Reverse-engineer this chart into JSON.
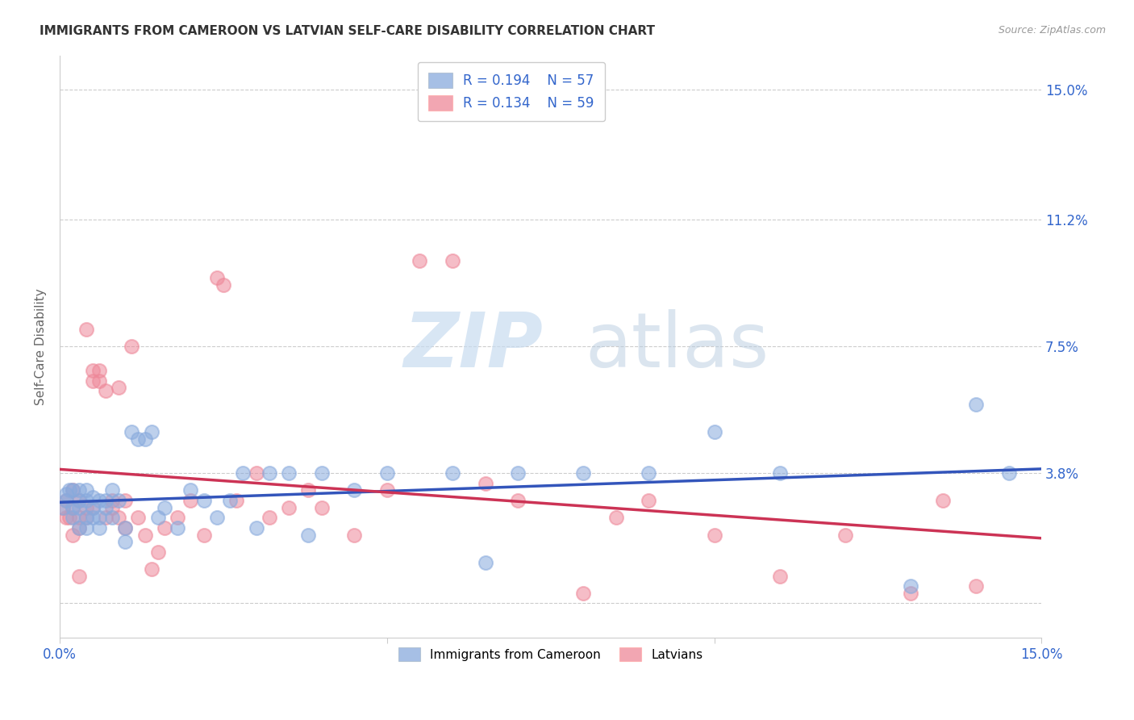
{
  "title": "IMMIGRANTS FROM CAMEROON VS LATVIAN SELF-CARE DISABILITY CORRELATION CHART",
  "source": "Source: ZipAtlas.com",
  "ylabel": "Self-Care Disability",
  "blue_color": "#88AADD",
  "pink_color": "#EE8899",
  "blue_line_color": "#3355BB",
  "pink_line_color": "#CC3355",
  "axis_label_color": "#3366CC",
  "title_color": "#333333",
  "source_color": "#999999",
  "legend_r1": "0.194",
  "legend_n1": "57",
  "legend_r2": "0.134",
  "legend_n2": "59",
  "right_ytick_values": [
    0.0,
    0.038,
    0.075,
    0.112,
    0.15
  ],
  "right_ytick_labels": [
    "",
    "3.8%",
    "7.5%",
    "11.2%",
    "15.0%"
  ],
  "blue_scatter_x": [
    0.0005,
    0.001,
    0.001,
    0.0015,
    0.002,
    0.002,
    0.002,
    0.003,
    0.003,
    0.003,
    0.003,
    0.004,
    0.004,
    0.004,
    0.004,
    0.005,
    0.005,
    0.005,
    0.006,
    0.006,
    0.006,
    0.007,
    0.007,
    0.008,
    0.008,
    0.009,
    0.01,
    0.01,
    0.011,
    0.012,
    0.013,
    0.014,
    0.015,
    0.016,
    0.018,
    0.02,
    0.022,
    0.024,
    0.026,
    0.028,
    0.03,
    0.032,
    0.035,
    0.038,
    0.04,
    0.045,
    0.05,
    0.06,
    0.065,
    0.07,
    0.08,
    0.09,
    0.1,
    0.11,
    0.13,
    0.14,
    0.145
  ],
  "blue_scatter_y": [
    0.028,
    0.032,
    0.03,
    0.033,
    0.028,
    0.025,
    0.033,
    0.022,
    0.03,
    0.028,
    0.033,
    0.025,
    0.03,
    0.033,
    0.022,
    0.028,
    0.025,
    0.031,
    0.025,
    0.03,
    0.022,
    0.028,
    0.03,
    0.033,
    0.025,
    0.03,
    0.018,
    0.022,
    0.05,
    0.048,
    0.048,
    0.05,
    0.025,
    0.028,
    0.022,
    0.033,
    0.03,
    0.025,
    0.03,
    0.038,
    0.022,
    0.038,
    0.038,
    0.02,
    0.038,
    0.033,
    0.038,
    0.038,
    0.012,
    0.038,
    0.038,
    0.038,
    0.05,
    0.038,
    0.005,
    0.058,
    0.038
  ],
  "pink_scatter_x": [
    0.0005,
    0.001,
    0.001,
    0.0015,
    0.002,
    0.002,
    0.002,
    0.003,
    0.003,
    0.003,
    0.003,
    0.004,
    0.004,
    0.004,
    0.005,
    0.005,
    0.005,
    0.006,
    0.006,
    0.007,
    0.007,
    0.008,
    0.008,
    0.009,
    0.009,
    0.01,
    0.01,
    0.011,
    0.012,
    0.013,
    0.014,
    0.015,
    0.016,
    0.018,
    0.02,
    0.022,
    0.024,
    0.025,
    0.027,
    0.03,
    0.032,
    0.035,
    0.038,
    0.04,
    0.045,
    0.05,
    0.055,
    0.06,
    0.065,
    0.07,
    0.08,
    0.085,
    0.09,
    0.1,
    0.11,
    0.12,
    0.13,
    0.135,
    0.14
  ],
  "pink_scatter_y": [
    0.028,
    0.025,
    0.03,
    0.025,
    0.02,
    0.028,
    0.033,
    0.03,
    0.022,
    0.025,
    0.008,
    0.025,
    0.08,
    0.028,
    0.028,
    0.068,
    0.065,
    0.065,
    0.068,
    0.025,
    0.062,
    0.03,
    0.028,
    0.063,
    0.025,
    0.022,
    0.03,
    0.075,
    0.025,
    0.02,
    0.01,
    0.015,
    0.022,
    0.025,
    0.03,
    0.02,
    0.095,
    0.093,
    0.03,
    0.038,
    0.025,
    0.028,
    0.033,
    0.028,
    0.02,
    0.033,
    0.1,
    0.1,
    0.035,
    0.03,
    0.003,
    0.025,
    0.03,
    0.02,
    0.008,
    0.02,
    0.003,
    0.03,
    0.005
  ]
}
